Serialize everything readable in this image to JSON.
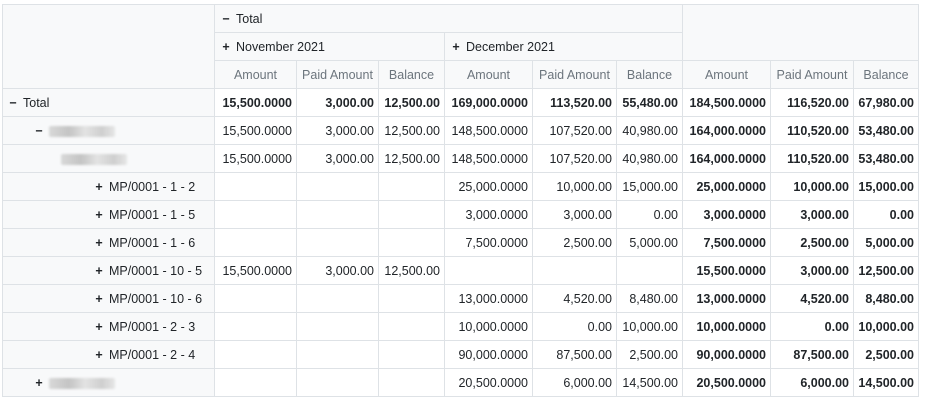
{
  "col_headers": {
    "total": "Total",
    "months": [
      "November 2021",
      "December 2021"
    ],
    "measures": [
      "Amount",
      "Paid Amount",
      "Balance"
    ]
  },
  "icons": {
    "expanded": "minus-icon",
    "collapsed": "plus-icon"
  },
  "rows": {
    "total": {
      "label": "Total",
      "nov": [
        "15,500.0000",
        "3,000.00",
        "12,500.00"
      ],
      "dec": [
        "169,000.0000",
        "113,520.00",
        "55,480.00"
      ],
      "tot": [
        "184,500.0000",
        "116,520.00",
        "67,980.00"
      ]
    },
    "group1": {
      "nov": [
        "15,500.0000",
        "3,000.00",
        "12,500.00"
      ],
      "dec": [
        "148,500.0000",
        "107,520.00",
        "40,980.00"
      ],
      "tot": [
        "164,000.0000",
        "110,520.00",
        "53,480.00"
      ]
    },
    "group2": {
      "nov": [
        "15,500.0000",
        "3,000.00",
        "12,500.00"
      ],
      "dec": [
        "148,500.0000",
        "107,520.00",
        "40,980.00"
      ],
      "tot": [
        "164,000.0000",
        "110,520.00",
        "53,480.00"
      ]
    },
    "leaves": [
      {
        "label": "MP/0001 - 1 - 2",
        "nov": [
          "",
          "",
          ""
        ],
        "dec": [
          "25,000.0000",
          "10,000.00",
          "15,000.00"
        ],
        "tot": [
          "25,000.0000",
          "10,000.00",
          "15,000.00"
        ]
      },
      {
        "label": "MP/0001 - 1 - 5",
        "nov": [
          "",
          "",
          ""
        ],
        "dec": [
          "3,000.0000",
          "3,000.00",
          "0.00"
        ],
        "tot": [
          "3,000.0000",
          "3,000.00",
          "0.00"
        ]
      },
      {
        "label": "MP/0001 - 1 - 6",
        "nov": [
          "",
          "",
          ""
        ],
        "dec": [
          "7,500.0000",
          "2,500.00",
          "5,000.00"
        ],
        "tot": [
          "7,500.0000",
          "2,500.00",
          "5,000.00"
        ]
      },
      {
        "label": "MP/0001 - 10 - 5",
        "nov": [
          "15,500.0000",
          "3,000.00",
          "12,500.00"
        ],
        "dec": [
          "",
          "",
          ""
        ],
        "tot": [
          "15,500.0000",
          "3,000.00",
          "12,500.00"
        ]
      },
      {
        "label": "MP/0001 - 10 - 6",
        "nov": [
          "",
          "",
          ""
        ],
        "dec": [
          "13,000.0000",
          "4,520.00",
          "8,480.00"
        ],
        "tot": [
          "13,000.0000",
          "4,520.00",
          "8,480.00"
        ]
      },
      {
        "label": "MP/0001 - 2 - 3",
        "nov": [
          "",
          "",
          ""
        ],
        "dec": [
          "10,000.0000",
          "0.00",
          "10,000.00"
        ],
        "tot": [
          "10,000.0000",
          "0.00",
          "10,000.00"
        ]
      },
      {
        "label": "MP/0001 - 2 - 4",
        "nov": [
          "",
          "",
          ""
        ],
        "dec": [
          "90,000.0000",
          "87,500.00",
          "2,500.00"
        ],
        "tot": [
          "90,000.0000",
          "87,500.00",
          "2,500.00"
        ]
      }
    ],
    "group3": {
      "nov": [
        "",
        "",
        ""
      ],
      "dec": [
        "20,500.0000",
        "6,000.00",
        "14,500.00"
      ],
      "tot": [
        "20,500.0000",
        "6,000.00",
        "14,500.00"
      ]
    }
  }
}
